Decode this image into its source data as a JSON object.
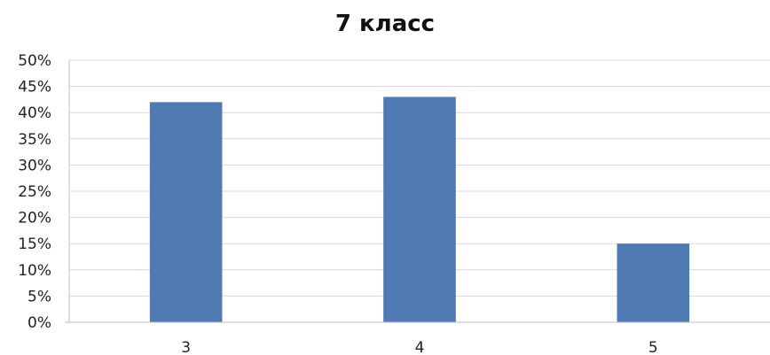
{
  "chart_data": {
    "type": "bar",
    "title": "7 класс",
    "xlabel": "",
    "ylabel": "",
    "categories": [
      "3",
      "4",
      "5"
    ],
    "values": [
      42,
      43,
      15
    ],
    "ylim": [
      0,
      50
    ],
    "y_ticks": [
      "0%",
      "5%",
      "10%",
      "15%",
      "20%",
      "25%",
      "30%",
      "35%",
      "40%",
      "45%",
      "50%"
    ],
    "grid": true,
    "legend": "none",
    "bar_color": "#4f7ab4",
    "grid_color": "#d9d9d9",
    "axis_color": "#bfbfbf"
  }
}
